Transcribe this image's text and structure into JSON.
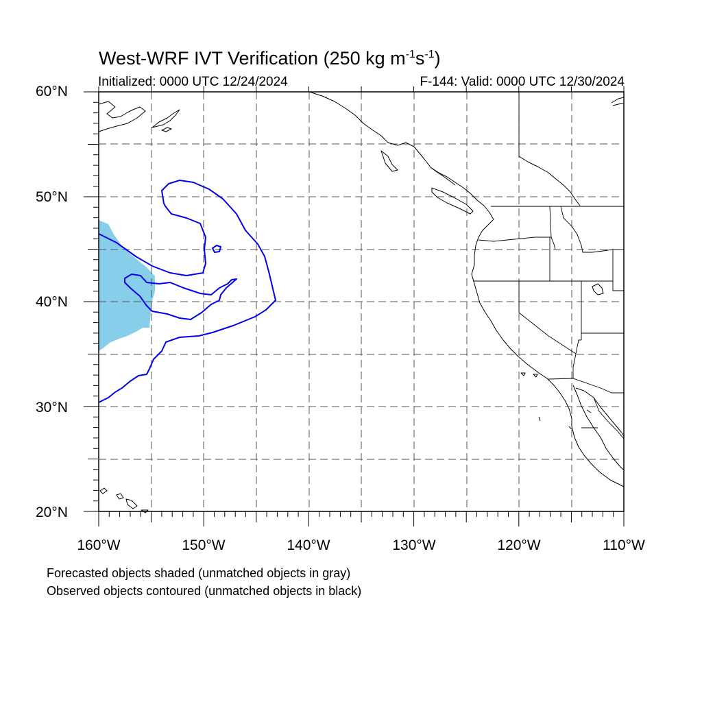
{
  "title": {
    "text": "West-WRF IVT Verification (250 kg m",
    "sup1": "-1",
    "s": "s",
    "sup2": "-1",
    "close": ")"
  },
  "initialized": "Initialized: 0000 UTC 12/24/2024",
  "valid": "F-144: Valid: 0000 UTC 12/30/2024",
  "lat_labels": [
    "60°N",
    "50°N",
    "40°N",
    "30°N",
    "20°N"
  ],
  "lon_labels": [
    "160°W",
    "150°W",
    "140°W",
    "130°W",
    "120°W",
    "110°W"
  ],
  "notes": [
    "Forecasted objects shaded (unmatched objects in gray)",
    "Observed objects contoured (unmatched objects in black)"
  ],
  "map": {
    "lon_range": [
      -160,
      -110
    ],
    "lat_range": [
      20,
      60
    ],
    "grid_interval_deg": 5,
    "projection": "cylindrical equidistant"
  },
  "colors": {
    "forecast_object": "#87ceeb",
    "observed_contour": "#0000ee",
    "coast": "#000000",
    "grid": "#555555"
  }
}
